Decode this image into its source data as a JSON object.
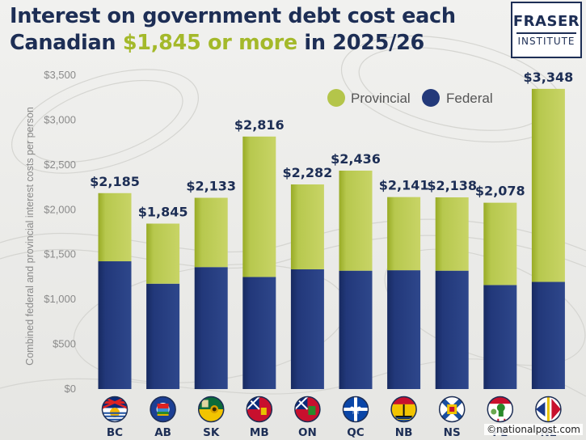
{
  "title": {
    "line1": "Interest on government debt cost each",
    "line2_prefix": "Canadian ",
    "line2_highlight": "$1,845 or more",
    "line2_suffix": " in 2025/26"
  },
  "logo": {
    "top": "FRASER",
    "bottom": "INSTITUTE"
  },
  "credit": "©nationalpost.com",
  "colors": {
    "provincial": "#b4c54a",
    "provincial_light": "#c9d565",
    "provincial_dark": "#97aa22",
    "federal": "#23397a",
    "federal_light": "#2d468a",
    "federal_dark": "#182b61",
    "title": "#1d2e55",
    "highlight": "#a4b92a"
  },
  "chart_data": {
    "type": "bar",
    "stacked": true,
    "categories": [
      "BC",
      "AB",
      "SK",
      "MB",
      "ON",
      "QC",
      "NB",
      "NS",
      "PE",
      "NL"
    ],
    "series": [
      {
        "name": "Federal",
        "values": [
          1425,
          1175,
          1360,
          1250,
          1335,
          1320,
          1325,
          1320,
          1160,
          1195
        ]
      },
      {
        "name": "Provincial",
        "values": [
          760,
          670,
          773,
          1566,
          947,
          1116,
          816,
          818,
          918,
          2153
        ]
      }
    ],
    "totals": [
      2185,
      1845,
      2133,
      2816,
      2282,
      2436,
      2141,
      2138,
      2078,
      3348
    ],
    "total_labels": [
      "$2,185",
      "$1,845",
      "$2,133",
      "$2,816",
      "$2,282",
      "$2,436",
      "$2,141",
      "$2,138",
      "$2,078",
      "$3,348"
    ],
    "ylabel": "Combined federal and provincial interest costs per person",
    "ylim": [
      0,
      3500
    ],
    "yticks": [
      0,
      500,
      1000,
      1500,
      2000,
      2500,
      3000,
      3500
    ],
    "ytick_labels": [
      "$0",
      "$500",
      "$1,000",
      "$1,500",
      "$2,000",
      "$2,500",
      "$3,000",
      "$3,500"
    ],
    "legend": {
      "position": "top-right",
      "order": [
        "Provincial",
        "Federal"
      ]
    },
    "grid": false,
    "category_icons": [
      "bc-flag-icon",
      "ab-flag-icon",
      "sk-flag-icon",
      "mb-flag-icon",
      "on-flag-icon",
      "qc-flag-icon",
      "nb-flag-icon",
      "ns-flag-icon",
      "pe-flag-icon",
      "nl-flag-icon"
    ]
  }
}
